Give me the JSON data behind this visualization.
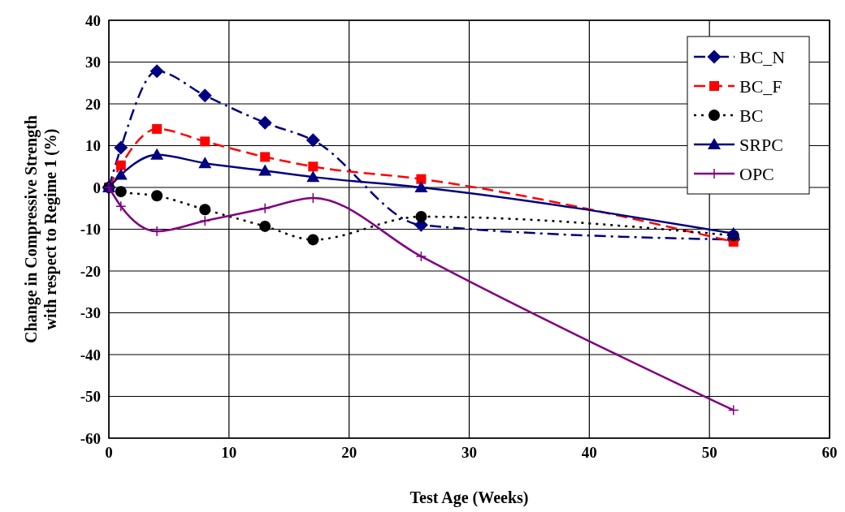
{
  "chart_data": {
    "type": "line",
    "xlabel": "Test Age (Weeks)",
    "ylabel": "Change in Compressive Strength with respect to Regime 1 (%)",
    "x": [
      0,
      1,
      4,
      8,
      13,
      17,
      26,
      52
    ],
    "series": [
      {
        "name": "BC_N",
        "color": "#000080",
        "marker": "diamond",
        "line_style": "dashdot",
        "values": [
          0,
          9.5,
          27.8,
          22,
          15.5,
          11.3,
          -9,
          -12.5
        ]
      },
      {
        "name": "BC_F",
        "color": "#ff0000",
        "marker": "square",
        "line_style": "dashed",
        "values": [
          0,
          5.3,
          14,
          11,
          7.3,
          5,
          2,
          -13
        ]
      },
      {
        "name": "BC",
        "color": "#000000",
        "marker": "circle",
        "line_style": "dotted",
        "values": [
          0,
          -1,
          -2,
          -5.3,
          -9.3,
          -12.5,
          -7,
          -11.5
        ]
      },
      {
        "name": "SRPC",
        "color": "#000080",
        "marker": "triangle",
        "line_style": "solid",
        "values": [
          0,
          3,
          7.8,
          5.8,
          4,
          2.5,
          0,
          -11
        ]
      },
      {
        "name": "OPC",
        "color": "#800080",
        "marker": "cross",
        "line_style": "solid",
        "values": [
          0,
          -4.5,
          -10.5,
          -8,
          -5,
          -2.5,
          -16.5,
          -53.3
        ]
      }
    ],
    "xlim": [
      0,
      60
    ],
    "xticks": [
      0,
      10,
      20,
      30,
      40,
      50,
      60
    ],
    "ylim": [
      -60,
      40
    ],
    "yticks": [
      -60,
      -50,
      -40,
      -30,
      -20,
      -10,
      0,
      10,
      20,
      30,
      40
    ],
    "grid": true,
    "legend": "top right"
  }
}
